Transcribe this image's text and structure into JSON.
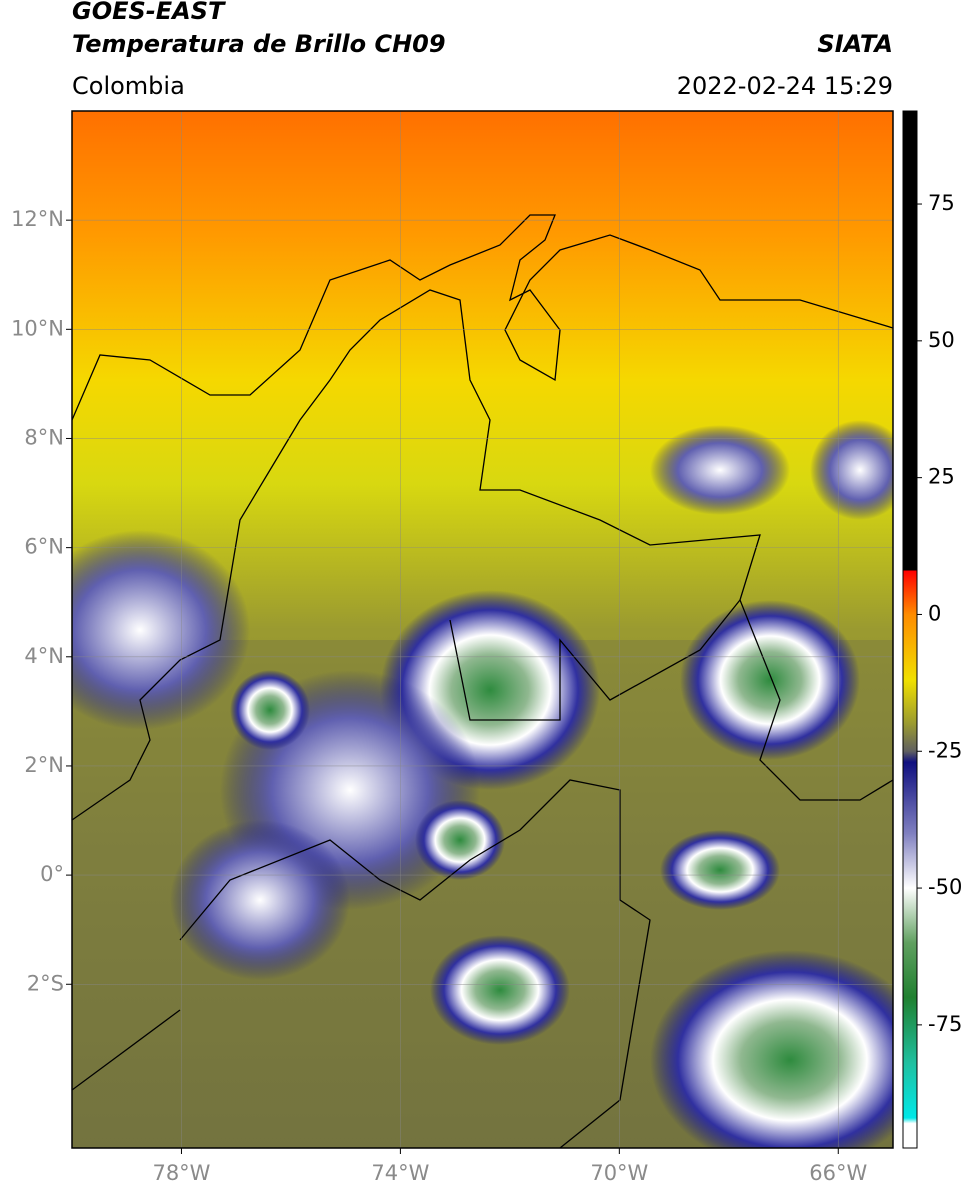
{
  "header": {
    "satellite": "GOES-EAST",
    "product": "Temperatura de Brillo CH09",
    "region": "Colombia",
    "source": "SIATA",
    "datetime": "2022-02-24 15:29"
  },
  "map": {
    "xlim": [
      -80,
      -65
    ],
    "ylim": [
      -5,
      14
    ],
    "xticks": [
      {
        "value": -78,
        "label": "78°W"
      },
      {
        "value": -74,
        "label": "74°W"
      },
      {
        "value": -70,
        "label": "70°W"
      },
      {
        "value": -66,
        "label": "66°W"
      }
    ],
    "yticks": [
      {
        "value": 12,
        "label": "12°N"
      },
      {
        "value": 10,
        "label": "10°N"
      },
      {
        "value": 8,
        "label": "8°N"
      },
      {
        "value": 6,
        "label": "6°N"
      },
      {
        "value": 4,
        "label": "4°N"
      },
      {
        "value": 2,
        "label": "2°N"
      },
      {
        "value": 0,
        "label": "0°"
      },
      {
        "value": -2,
        "label": "2°S"
      }
    ],
    "grid": true
  },
  "colorbar": {
    "lim": [
      -97.5,
      92
    ],
    "ticks": [
      75,
      50,
      25,
      0,
      -25,
      -50,
      -75
    ],
    "stops": [
      {
        "value": 92,
        "color": "#000000"
      },
      {
        "value": 8,
        "color": "#000000"
      },
      {
        "value": 8,
        "color": "#ff0000"
      },
      {
        "value": 0,
        "color": "#ff8c00"
      },
      {
        "value": -12,
        "color": "#f0e000"
      },
      {
        "value": -20,
        "color": "#9a9a30"
      },
      {
        "value": -25,
        "color": "#606060"
      },
      {
        "value": -27,
        "color": "#101080"
      },
      {
        "value": -40,
        "color": "#8080c0"
      },
      {
        "value": -50,
        "color": "#ffffff"
      },
      {
        "value": -60,
        "color": "#60a060"
      },
      {
        "value": -70,
        "color": "#208030"
      },
      {
        "value": -82,
        "color": "#20c0a0"
      },
      {
        "value": -92,
        "color": "#00e8e8"
      },
      {
        "value": -93,
        "color": "#ffffff"
      },
      {
        "value": -97.5,
        "color": "#ffffff"
      }
    ]
  }
}
